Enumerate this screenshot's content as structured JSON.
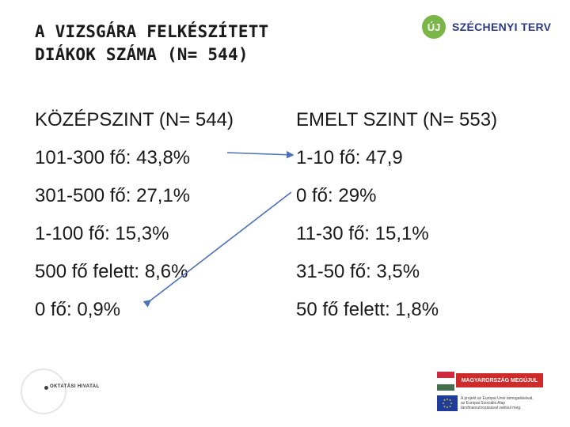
{
  "header": {
    "title_line1": "A VIZSGÁRA FELKÉSZÍTETT",
    "title_line2": "DIÁKOK SZÁMA (N= 544)",
    "logo": {
      "mark": "ÚJ",
      "name": "SZÉCHENYI TERV",
      "color": "#7ab648"
    }
  },
  "left_column": {
    "heading": "KÖZÉPSZINT (N= 544)",
    "items": [
      "101-300 fő: 43,8%",
      "301-500 fő: 27,1%",
      "1-100 fő: 15,3%",
      "500 fő felett: 8,6%",
      "0 fő: 0,9%"
    ]
  },
  "right_column": {
    "heading": "EMELT SZINT (N= 553)",
    "items": [
      "1-10 fő: 47,9",
      "0 fő: 29%",
      "11-30 fő: 15,1%",
      "31-50 fő: 3,5%",
      "50 fő felett: 1,8%"
    ]
  },
  "arrows": {
    "color": "#4a72b8"
  },
  "footer": {
    "left_logo_text": "OKTATÁSI HIVATAL",
    "right_banner": "MAGYARORSZÁG MEGÚJUL",
    "eu_lines": [
      "A projekt az Európai Unió támogatásával,",
      "az Európai Szociális Alap",
      "társfinanszírozásával valósul meg."
    ]
  }
}
